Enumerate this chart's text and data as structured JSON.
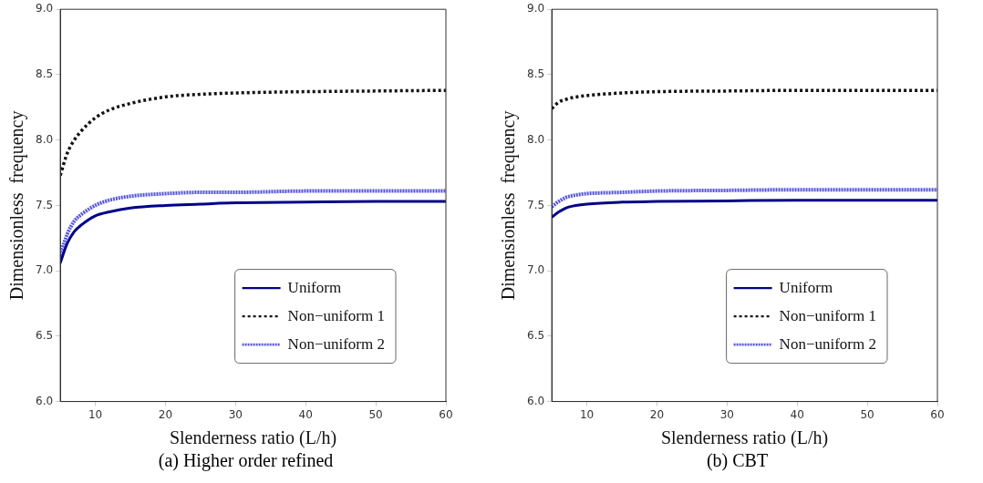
{
  "chart_data": [
    {
      "type": "line",
      "subtitle": "(a) Higher order refined",
      "xlabel": "Slenderness ratio (L/h)",
      "ylabel": "Dimensionless  frequency",
      "xlim": [
        5,
        60
      ],
      "xticks": [
        10,
        20,
        30,
        40,
        50,
        60
      ],
      "ylim": [
        6,
        9
      ],
      "yticks": [
        {
          "value": 6,
          "label": "6.0"
        },
        6.5,
        {
          "value": 7,
          "label": "7.0"
        },
        7.5,
        {
          "value": 8,
          "label": "8.0"
        },
        8.5,
        {
          "value": 9,
          "label": "9.0"
        }
      ],
      "grid": false,
      "legend": "bottom right",
      "marker": "none",
      "series": [
        {
          "name": "Uniform",
          "color": "#00008b",
          "line_style": "solid",
          "x": [
            5,
            6,
            7,
            8,
            10,
            12,
            15,
            20,
            25,
            30,
            40,
            50,
            60
          ],
          "values": [
            7.06,
            7.21,
            7.3,
            7.35,
            7.42,
            7.45,
            7.48,
            7.5,
            7.51,
            7.52,
            7.525,
            7.53,
            7.53
          ]
        },
        {
          "name": "Non−uniform 1",
          "color": "#111111",
          "line_style": "dotted",
          "x": [
            5,
            6,
            7,
            8,
            10,
            12,
            15,
            20,
            25,
            30,
            40,
            50,
            60
          ],
          "values": [
            7.73,
            7.9,
            8.0,
            8.07,
            8.17,
            8.23,
            8.28,
            8.33,
            8.35,
            8.36,
            8.37,
            8.375,
            8.38
          ]
        },
        {
          "name": "Non−uniform 2",
          "color": "#5555dd",
          "line_style": "dashed",
          "x": [
            5,
            6,
            7,
            8,
            10,
            12,
            15,
            20,
            25,
            30,
            40,
            50,
            60
          ],
          "values": [
            7.12,
            7.28,
            7.38,
            7.43,
            7.5,
            7.54,
            7.57,
            7.59,
            7.6,
            7.6,
            7.61,
            7.61,
            7.61
          ]
        }
      ]
    },
    {
      "type": "line",
      "subtitle": "(b) CBT",
      "xlabel": "Slenderness ratio (L/h)",
      "ylabel": "Dimensionless  frequency",
      "xlim": [
        5,
        60
      ],
      "xticks": [
        10,
        20,
        30,
        40,
        50,
        60
      ],
      "ylim": [
        6,
        9
      ],
      "yticks": [
        {
          "value": 6,
          "label": "6.0"
        },
        6.5,
        {
          "value": 7,
          "label": "7.0"
        },
        7.5,
        {
          "value": 8,
          "label": "8.0"
        },
        8.5,
        {
          "value": 9,
          "label": "9.0"
        }
      ],
      "grid": false,
      "legend": "bottom right",
      "marker": "none",
      "series": [
        {
          "name": "Uniform",
          "color": "#00008b",
          "line_style": "solid",
          "x": [
            5,
            6,
            7,
            8,
            10,
            15,
            20,
            30,
            40,
            60
          ],
          "values": [
            7.41,
            7.45,
            7.48,
            7.495,
            7.51,
            7.525,
            7.53,
            7.535,
            7.54,
            7.54
          ]
        },
        {
          "name": "Non−uniform 1",
          "color": "#111111",
          "line_style": "dotted",
          "x": [
            5,
            6,
            7,
            8,
            10,
            15,
            20,
            30,
            40,
            60
          ],
          "values": [
            8.24,
            8.29,
            8.31,
            8.325,
            8.34,
            8.36,
            8.37,
            8.375,
            8.38,
            8.38
          ]
        },
        {
          "name": "Non−uniform 2",
          "color": "#5555dd",
          "line_style": "dashed",
          "x": [
            5,
            6,
            7,
            8,
            10,
            15,
            20,
            30,
            40,
            60
          ],
          "values": [
            7.49,
            7.53,
            7.56,
            7.575,
            7.59,
            7.6,
            7.61,
            7.615,
            7.62,
            7.62
          ]
        }
      ]
    }
  ]
}
